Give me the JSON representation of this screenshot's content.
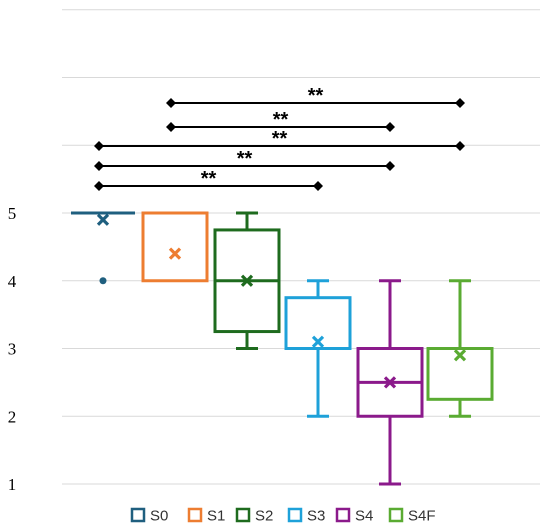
{
  "chart_data": {
    "type": "boxplot",
    "title": "",
    "xlabel": "",
    "ylabel": "",
    "ylim": [
      1,
      5
    ],
    "y_ticks": [
      "1",
      "2",
      "3",
      "4",
      "5"
    ],
    "grid": true,
    "legend_position": "bottom",
    "series": [
      {
        "name": "S0",
        "color": "#1f5f7f",
        "min": 5,
        "q1": 5,
        "median": 5,
        "q3": 5,
        "max": 5,
        "mean": 4.9,
        "outliers": [
          4
        ]
      },
      {
        "name": "S1",
        "color": "#ed7d31",
        "min": 4,
        "q1": 4,
        "median": 4,
        "q3": 5,
        "max": 5,
        "mean": 4.4,
        "outliers": []
      },
      {
        "name": "S2",
        "color": "#1e6b1e",
        "min": 3,
        "q1": 3.25,
        "median": 4,
        "q3": 4.75,
        "max": 5,
        "mean": 4.0,
        "outliers": []
      },
      {
        "name": "S3",
        "color": "#1ea1d9",
        "min": 2,
        "q1": 3,
        "median": 3,
        "q3": 3.75,
        "max": 4,
        "mean": 3.1,
        "outliers": []
      },
      {
        "name": "S4",
        "color": "#8b1a8b",
        "min": 1,
        "q1": 2,
        "median": 2.5,
        "q3": 3,
        "max": 4,
        "mean": 2.5,
        "outliers": []
      },
      {
        "name": "S4F",
        "color": "#5aab32",
        "min": 2,
        "q1": 2.25,
        "median": 3,
        "q3": 3,
        "max": 4,
        "mean": 2.9,
        "outliers": []
      }
    ],
    "significance": [
      {
        "from": "S1",
        "to": "S4F",
        "label": "**"
      },
      {
        "from": "S1",
        "to": "S4",
        "label": "**"
      },
      {
        "from": "S0",
        "to": "S4F",
        "label": "**"
      },
      {
        "from": "S0",
        "to": "S4",
        "label": "**"
      },
      {
        "from": "S0",
        "to": "S3",
        "label": "**"
      }
    ]
  }
}
